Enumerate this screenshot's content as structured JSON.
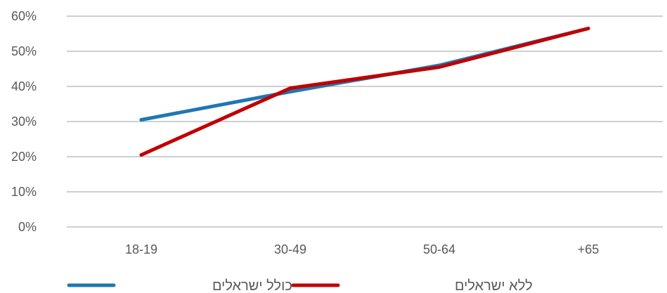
{
  "chart_data": {
    "type": "line",
    "categories": [
      "18-19",
      "30-49",
      "50-64",
      "+65"
    ],
    "series": [
      {
        "name": "כולל ישראלים",
        "color": "#1f77b4",
        "values": [
          0.305,
          0.385,
          0.46,
          0.565
        ]
      },
      {
        "name": "ללא ישראלים",
        "color": "#c00000",
        "values": [
          0.205,
          0.395,
          0.455,
          0.565
        ]
      }
    ],
    "ylim": [
      0,
      0.6
    ],
    "y_ticks": [
      "0%",
      "10%",
      "20%",
      "30%",
      "40%",
      "50%",
      "60%"
    ],
    "grid": true,
    "legend_position": "bottom",
    "title": "",
    "xlabel": "",
    "ylabel": ""
  }
}
